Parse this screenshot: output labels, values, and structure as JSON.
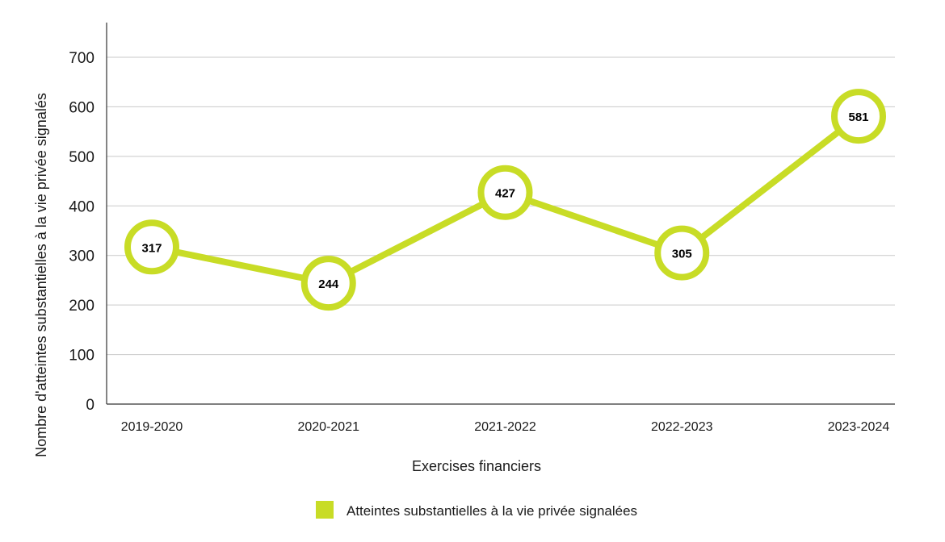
{
  "chart_data": {
    "type": "line",
    "title": "",
    "xlabel": "Exercises financiers",
    "ylabel": "Nombre d'atteintes substantielles à la vie privée signalés",
    "categories": [
      "2019-2020",
      "2020-2021",
      "2021-2022",
      "2022-2023",
      "2023-2024"
    ],
    "series": [
      {
        "name": "Atteintes substantielles à la vie privée signalées",
        "values": [
          317,
          244,
          427,
          305,
          581
        ],
        "color": "#c8dc26"
      }
    ],
    "ylim": [
      0,
      770
    ],
    "yticks": [
      0,
      100,
      200,
      300,
      400,
      500,
      600,
      700
    ],
    "grid": true,
    "legend_position": "bottom-center"
  }
}
